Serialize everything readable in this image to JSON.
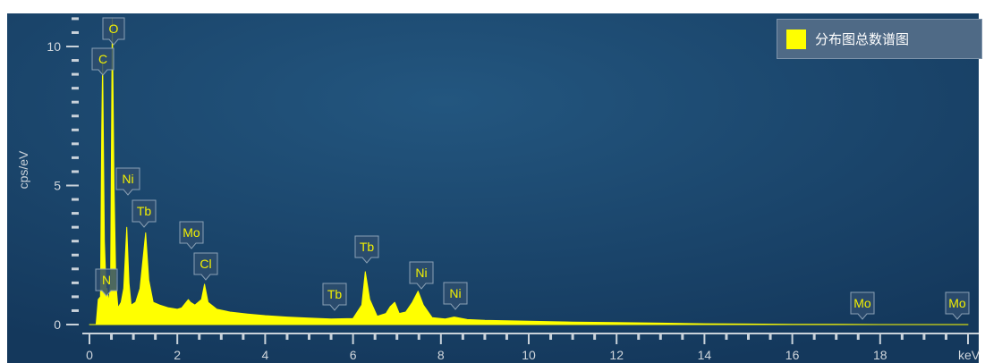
{
  "chart_data": {
    "type": "area",
    "xlabel": "keV",
    "ylabel": "cps/eV",
    "xlim": [
      0,
      20
    ],
    "ylim": [
      0,
      11
    ],
    "x_ticks": [
      "0",
      "2",
      "4",
      "6",
      "8",
      "10",
      "12",
      "14",
      "16",
      "18"
    ],
    "y_ticks": [
      "0",
      "5",
      "10"
    ],
    "series": [
      {
        "name": "分布图总数谱图",
        "color": "#ffff00",
        "points": [
          [
            0.0,
            0.0
          ],
          [
            0.15,
            0.0
          ],
          [
            0.2,
            0.9
          ],
          [
            0.25,
            1.0
          ],
          [
            0.28,
            7.0
          ],
          [
            0.3,
            9.5
          ],
          [
            0.34,
            3.0
          ],
          [
            0.38,
            1.2
          ],
          [
            0.4,
            1.3
          ],
          [
            0.44,
            0.8
          ],
          [
            0.48,
            1.5
          ],
          [
            0.52,
            11.0
          ],
          [
            0.56,
            5.0
          ],
          [
            0.6,
            1.5
          ],
          [
            0.65,
            0.6
          ],
          [
            0.72,
            0.8
          ],
          [
            0.78,
            1.3
          ],
          [
            0.85,
            3.5
          ],
          [
            0.9,
            1.5
          ],
          [
            0.95,
            0.7
          ],
          [
            1.05,
            0.8
          ],
          [
            1.15,
            1.3
          ],
          [
            1.28,
            3.3
          ],
          [
            1.35,
            1.6
          ],
          [
            1.45,
            0.8
          ],
          [
            1.6,
            0.7
          ],
          [
            1.8,
            0.6
          ],
          [
            2.0,
            0.55
          ],
          [
            2.1,
            0.6
          ],
          [
            2.25,
            0.9
          ],
          [
            2.3,
            0.8
          ],
          [
            2.4,
            0.7
          ],
          [
            2.55,
            0.9
          ],
          [
            2.62,
            1.45
          ],
          [
            2.7,
            0.8
          ],
          [
            2.9,
            0.55
          ],
          [
            3.2,
            0.45
          ],
          [
            3.6,
            0.38
          ],
          [
            4.0,
            0.32
          ],
          [
            4.5,
            0.27
          ],
          [
            5.0,
            0.23
          ],
          [
            5.5,
            0.2
          ],
          [
            6.0,
            0.22
          ],
          [
            6.2,
            0.7
          ],
          [
            6.28,
            1.9
          ],
          [
            6.38,
            0.9
          ],
          [
            6.55,
            0.3
          ],
          [
            6.75,
            0.4
          ],
          [
            6.85,
            0.65
          ],
          [
            6.95,
            0.8
          ],
          [
            7.05,
            0.4
          ],
          [
            7.2,
            0.45
          ],
          [
            7.35,
            0.8
          ],
          [
            7.48,
            1.2
          ],
          [
            7.6,
            0.7
          ],
          [
            7.8,
            0.25
          ],
          [
            8.1,
            0.2
          ],
          [
            8.3,
            0.27
          ],
          [
            8.6,
            0.18
          ],
          [
            9.0,
            0.15
          ],
          [
            10.0,
            0.12
          ],
          [
            11.0,
            0.09
          ],
          [
            12.0,
            0.07
          ],
          [
            13.0,
            0.05
          ],
          [
            14.0,
            0.03
          ],
          [
            15.0,
            0.02
          ],
          [
            16.0,
            0.01
          ],
          [
            17.0,
            0.01
          ],
          [
            18.0,
            0.0
          ],
          [
            20.0,
            0.0
          ]
        ]
      }
    ],
    "peak_labels": [
      {
        "label": "C",
        "x": 0.28,
        "y": 9.5
      },
      {
        "label": "O",
        "x": 0.52,
        "y": 11.0
      },
      {
        "label": "N",
        "x": 0.39,
        "y": 1.4
      },
      {
        "label": "Ni",
        "x": 0.85,
        "y": 3.5
      },
      {
        "label": "Tb",
        "x": 1.28,
        "y": 3.3
      },
      {
        "label": "Mo",
        "x": 2.29,
        "y": 0.9
      },
      {
        "label": "Cl",
        "x": 2.62,
        "y": 1.45
      },
      {
        "label": "Tb",
        "x": 5.6,
        "y": 0.2
      },
      {
        "label": "Tb",
        "x": 6.28,
        "y": 1.9
      },
      {
        "label": "Ni",
        "x": 7.48,
        "y": 1.2
      },
      {
        "label": "Ni",
        "x": 8.26,
        "y": 0.27
      },
      {
        "label": "Mo",
        "x": 17.4,
        "y": 0.0
      },
      {
        "label": "Mo",
        "x": 19.6,
        "y": 0.0
      }
    ],
    "legend": {
      "position": "top-right"
    },
    "grid": false,
    "background_colors": [
      "#1f4d78",
      "#163d62"
    ]
  }
}
